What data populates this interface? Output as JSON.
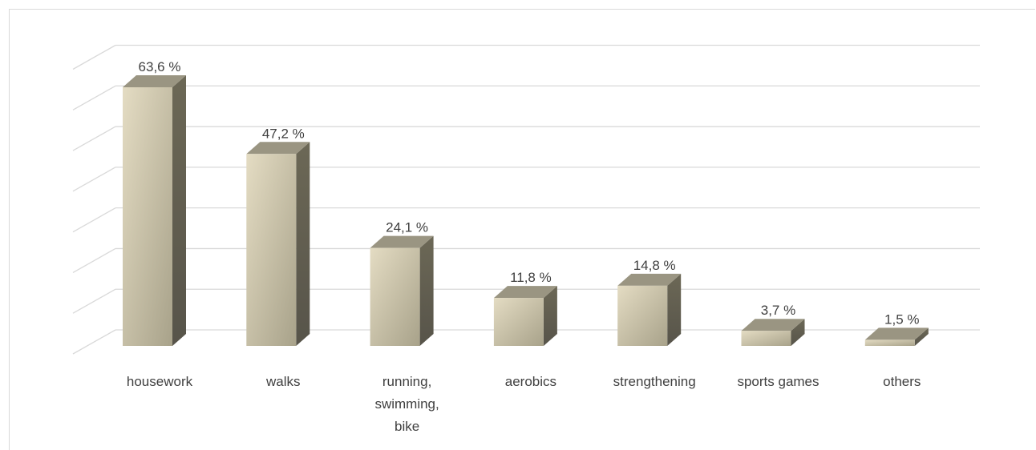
{
  "chart_data": {
    "type": "bar",
    "style": "3d-column",
    "title": "",
    "xlabel": "",
    "ylabel": "",
    "ylim": [
      0,
      70
    ],
    "grid": true,
    "legend": "none",
    "categories": [
      [
        "housework"
      ],
      [
        "walks"
      ],
      [
        "running,",
        "swimming,",
        "bike"
      ],
      [
        "aerobics"
      ],
      [
        "strengthening"
      ],
      [
        "sports games"
      ],
      [
        "others"
      ]
    ],
    "series": [
      {
        "values": [
          63.6,
          47.2,
          24.1,
          11.8,
          14.8,
          3.7,
          1.5
        ],
        "labels": [
          "63,6 %",
          "47,2 %",
          "24,1 %",
          "11,8 %",
          "14,8 %",
          "3,7 %",
          "1,5 %"
        ]
      }
    ],
    "colors": {
      "bar_front_light": "#e4dcc3",
      "bar_front_dark": "#a8a28a",
      "bar_top": "#9a9582",
      "bar_side": "#6c6856",
      "gridline": "#d9d9d9",
      "text": "#404040"
    }
  }
}
